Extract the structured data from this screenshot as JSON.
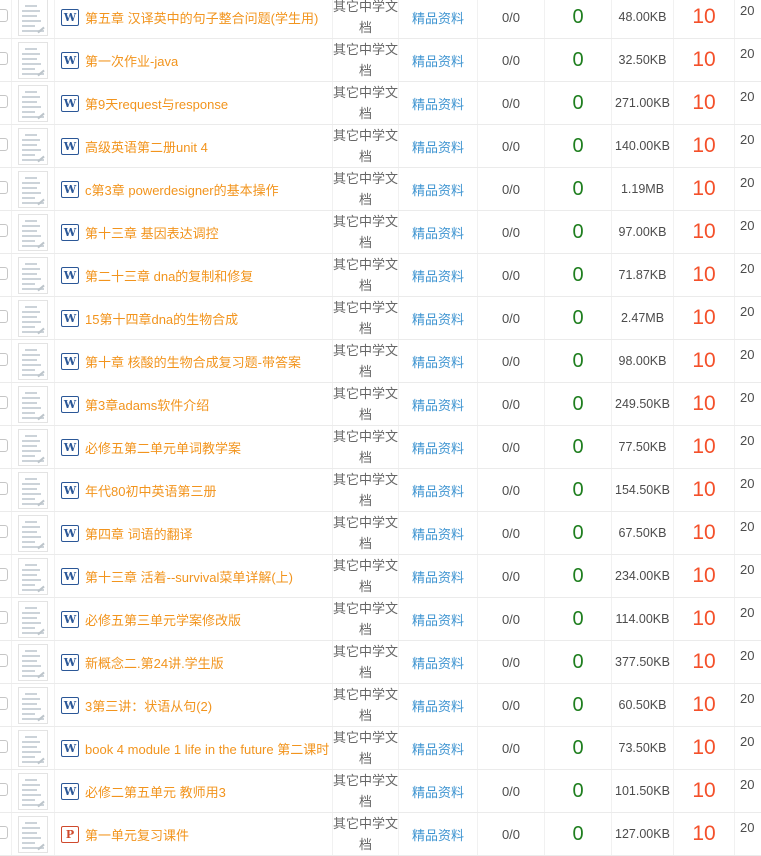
{
  "colors": {
    "title_orange": "#F2941D",
    "link_blue": "#3E94D1",
    "count_green": "#1E7E1E",
    "score_red": "#F4502A",
    "word_icon_blue": "#2B5797",
    "ppt_icon_red": "#CF4A2D"
  },
  "icons": {
    "word_label": "W",
    "ppt_label": "P"
  },
  "table": {
    "rows": [
      {
        "type": "word",
        "title": "第五章 汉译英中的句子整合问题(学生用)",
        "category": "其它中学文档",
        "collection": "精品资料",
        "ratio": "0/0",
        "count": "0",
        "size": "48.00KB",
        "score": "10",
        "date": "20"
      },
      {
        "type": "word",
        "title": "第一次作业-java",
        "category": "其它中学文档",
        "collection": "精品资料",
        "ratio": "0/0",
        "count": "0",
        "size": "32.50KB",
        "score": "10",
        "date": "20"
      },
      {
        "type": "word",
        "title": "第9天request与response",
        "category": "其它中学文档",
        "collection": "精品资料",
        "ratio": "0/0",
        "count": "0",
        "size": "271.00KB",
        "score": "10",
        "date": "20"
      },
      {
        "type": "word",
        "title": "高级英语第二册unit 4",
        "category": "其它中学文档",
        "collection": "精品资料",
        "ratio": "0/0",
        "count": "0",
        "size": "140.00KB",
        "score": "10",
        "date": "20"
      },
      {
        "type": "word",
        "title": "c第3章 powerdesigner的基本操作",
        "category": "其它中学文档",
        "collection": "精品资料",
        "ratio": "0/0",
        "count": "0",
        "size": "1.19MB",
        "score": "10",
        "date": "20"
      },
      {
        "type": "word",
        "title": "第十三章 基因表达调控",
        "category": "其它中学文档",
        "collection": "精品资料",
        "ratio": "0/0",
        "count": "0",
        "size": "97.00KB",
        "score": "10",
        "date": "20"
      },
      {
        "type": "word",
        "title": "第二十三章 dna的复制和修复",
        "category": "其它中学文档",
        "collection": "精品资料",
        "ratio": "0/0",
        "count": "0",
        "size": "71.87KB",
        "score": "10",
        "date": "20"
      },
      {
        "type": "word",
        "title": "15第十四章dna的生物合成",
        "category": "其它中学文档",
        "collection": "精品资料",
        "ratio": "0/0",
        "count": "0",
        "size": "2.47MB",
        "score": "10",
        "date": "20"
      },
      {
        "type": "word",
        "title": "第十章 核酸的生物合成复习题-带答案",
        "category": "其它中学文档",
        "collection": "精品资料",
        "ratio": "0/0",
        "count": "0",
        "size": "98.00KB",
        "score": "10",
        "date": "20"
      },
      {
        "type": "word",
        "title": "第3章adams软件介绍",
        "category": "其它中学文档",
        "collection": "精品资料",
        "ratio": "0/0",
        "count": "0",
        "size": "249.50KB",
        "score": "10",
        "date": "20"
      },
      {
        "type": "word",
        "title": "必修五第二单元单词教学案",
        "category": "其它中学文档",
        "collection": "精品资料",
        "ratio": "0/0",
        "count": "0",
        "size": "77.50KB",
        "score": "10",
        "date": "20"
      },
      {
        "type": "word",
        "title": "年代80初中英语第三册",
        "category": "其它中学文档",
        "collection": "精品资料",
        "ratio": "0/0",
        "count": "0",
        "size": "154.50KB",
        "score": "10",
        "date": "20"
      },
      {
        "type": "word",
        "title": "第四章 词语的翻译",
        "category": "其它中学文档",
        "collection": "精品资料",
        "ratio": "0/0",
        "count": "0",
        "size": "67.50KB",
        "score": "10",
        "date": "20"
      },
      {
        "type": "word",
        "title": "第十三章 活着--survival菜单详解(上)",
        "category": "其它中学文档",
        "collection": "精品资料",
        "ratio": "0/0",
        "count": "0",
        "size": "234.00KB",
        "score": "10",
        "date": "20"
      },
      {
        "type": "word",
        "title": "必修五第三单元学案修改版",
        "category": "其它中学文档",
        "collection": "精品资料",
        "ratio": "0/0",
        "count": "0",
        "size": "114.00KB",
        "score": "10",
        "date": "20"
      },
      {
        "type": "word",
        "title": "新概念二.第24讲.学生版",
        "category": "其它中学文档",
        "collection": "精品资料",
        "ratio": "0/0",
        "count": "0",
        "size": "377.50KB",
        "score": "10",
        "date": "20"
      },
      {
        "type": "word",
        "title": "3第三讲：状语从句(2)",
        "category": "其它中学文档",
        "collection": "精品资料",
        "ratio": "0/0",
        "count": "0",
        "size": "60.50KB",
        "score": "10",
        "date": "20"
      },
      {
        "type": "word",
        "title": "book 4 module 1 life in the future 第二课时",
        "category": "其它中学文档",
        "collection": "精品资料",
        "ratio": "0/0",
        "count": "0",
        "size": "73.50KB",
        "score": "10",
        "date": "20"
      },
      {
        "type": "word",
        "title": "必修二第五单元 教师用3",
        "category": "其它中学文档",
        "collection": "精品资料",
        "ratio": "0/0",
        "count": "0",
        "size": "101.50KB",
        "score": "10",
        "date": "20"
      },
      {
        "type": "ppt",
        "title": "第一单元复习课件",
        "category": "其它中学文档",
        "collection": "精品资料",
        "ratio": "0/0",
        "count": "0",
        "size": "127.00KB",
        "score": "10",
        "date": "20"
      }
    ]
  }
}
